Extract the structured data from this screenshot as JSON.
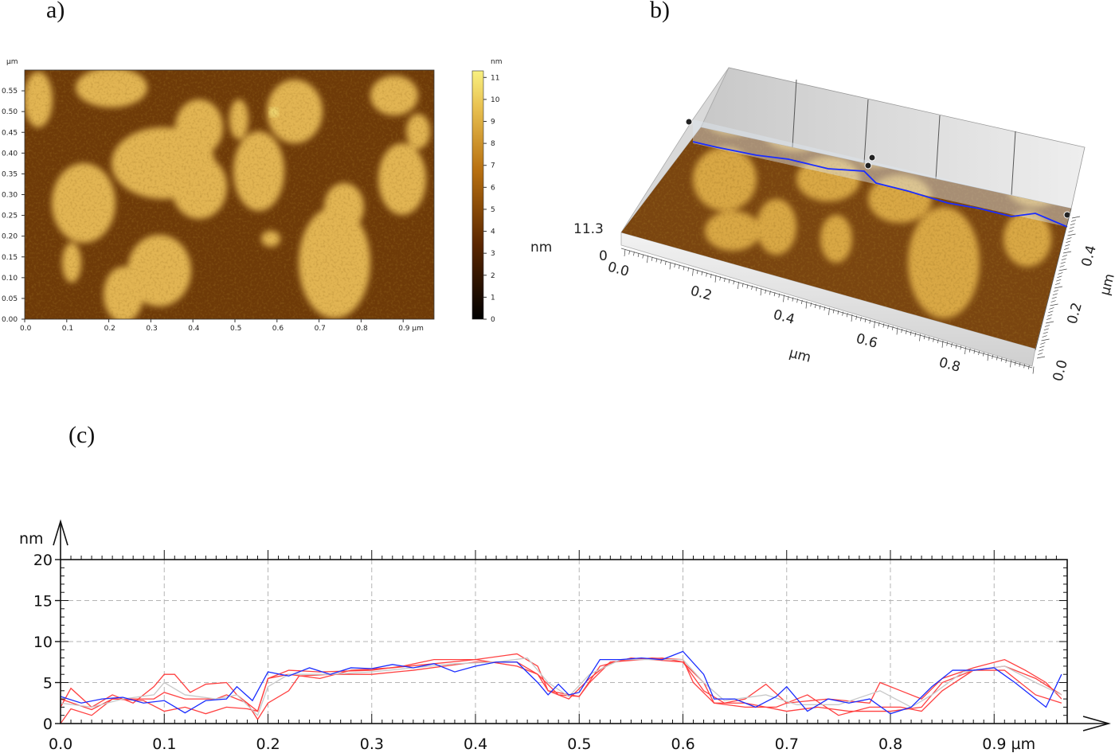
{
  "labels": {
    "a": "a)",
    "b": "b)",
    "c": "(c)"
  },
  "panel_a": {
    "y_unit": "µm",
    "colorbar_unit": "nm",
    "y_ticks": [
      "0.00",
      "0.05",
      "0.10",
      "0.15",
      "0.20",
      "0.25",
      "0.30",
      "0.35",
      "0.40",
      "0.45",
      "0.50",
      "0.55"
    ],
    "x_ticks": [
      "0.0",
      "0.1",
      "0.2",
      "0.3",
      "0.4",
      "0.5",
      "0.6",
      "0.7",
      "0.8",
      "0.9 µm"
    ],
    "colorbar_ticks": [
      "0",
      "1",
      "2",
      "3",
      "4",
      "5",
      "6",
      "7",
      "8",
      "9",
      "10",
      "11"
    ],
    "colorbar_range": [
      0,
      11.3
    ],
    "colors": {
      "low": "#000000",
      "mid": "#8a4a08",
      "high": "#f8f080"
    }
  },
  "panel_b": {
    "z_max": "11.3",
    "z_min": "0",
    "z_unit": "nm",
    "x_ticks": [
      "0.0",
      "0.2",
      "0.4",
      "0.6",
      "0.8"
    ],
    "x_unit": "µm",
    "y_ticks": [
      "0.0",
      "0.2",
      "0.4"
    ],
    "y_unit": "µm",
    "profile_color": "#1a2cff"
  },
  "chart_data": {
    "type": "line",
    "xlabel": "µm",
    "ylabel": "nm",
    "x_ticks": [
      "0.0",
      "0.1",
      "0.2",
      "0.3",
      "0.4",
      "0.5",
      "0.6",
      "0.7",
      "0.8",
      "0.9 µm"
    ],
    "y_ticks": [
      "0",
      "5",
      "10",
      "15",
      "20"
    ],
    "xlim": [
      0,
      0.97
    ],
    "ylim": [
      0,
      20
    ],
    "grid": true,
    "series": [
      {
        "color": "#ff4040",
        "points": [
          [
            0,
            2
          ],
          [
            0.01,
            4.3
          ],
          [
            0.03,
            2
          ],
          [
            0.05,
            3.5
          ],
          [
            0.07,
            2.5
          ],
          [
            0.09,
            4.5
          ],
          [
            0.1,
            6
          ],
          [
            0.11,
            6
          ],
          [
            0.125,
            3.8
          ],
          [
            0.14,
            4.8
          ],
          [
            0.16,
            5
          ],
          [
            0.17,
            3.5
          ],
          [
            0.19,
            1.5
          ],
          [
            0.2,
            5.5
          ],
          [
            0.22,
            6.5
          ],
          [
            0.25,
            6.3
          ],
          [
            0.3,
            6.5
          ],
          [
            0.33,
            7
          ],
          [
            0.36,
            7.8
          ],
          [
            0.4,
            7.8
          ],
          [
            0.44,
            8.5
          ],
          [
            0.46,
            7
          ],
          [
            0.47,
            4
          ],
          [
            0.5,
            3.3
          ],
          [
            0.52,
            7
          ],
          [
            0.55,
            8
          ],
          [
            0.6,
            7.5
          ],
          [
            0.62,
            4
          ],
          [
            0.64,
            2.5
          ],
          [
            0.66,
            3
          ],
          [
            0.68,
            4.8
          ],
          [
            0.7,
            2.5
          ],
          [
            0.74,
            3
          ],
          [
            0.78,
            2.5
          ],
          [
            0.79,
            5
          ],
          [
            0.81,
            4
          ],
          [
            0.83,
            3
          ],
          [
            0.85,
            5.5
          ],
          [
            0.88,
            6.8
          ],
          [
            0.91,
            7.8
          ],
          [
            0.93,
            6.5
          ],
          [
            0.95,
            5
          ],
          [
            0.965,
            3
          ]
        ]
      },
      {
        "color": "#ff4040",
        "points": [
          [
            0,
            0
          ],
          [
            0.01,
            1.8
          ],
          [
            0.03,
            1
          ],
          [
            0.05,
            3
          ],
          [
            0.07,
            3
          ],
          [
            0.09,
            3
          ],
          [
            0.1,
            3.8
          ],
          [
            0.12,
            3
          ],
          [
            0.15,
            3
          ],
          [
            0.16,
            3.5
          ],
          [
            0.18,
            2.5
          ],
          [
            0.19,
            0.5
          ],
          [
            0.2,
            2.5
          ],
          [
            0.22,
            4
          ],
          [
            0.23,
            5.8
          ],
          [
            0.26,
            6
          ],
          [
            0.3,
            6
          ],
          [
            0.34,
            6.5
          ],
          [
            0.37,
            7
          ],
          [
            0.4,
            7.5
          ],
          [
            0.44,
            7.5
          ],
          [
            0.46,
            6
          ],
          [
            0.48,
            3.5
          ],
          [
            0.5,
            3.3
          ],
          [
            0.51,
            5
          ],
          [
            0.53,
            7.5
          ],
          [
            0.57,
            8
          ],
          [
            0.6,
            7.8
          ],
          [
            0.61,
            5
          ],
          [
            0.63,
            2.5
          ],
          [
            0.66,
            2.5
          ],
          [
            0.7,
            1.5
          ],
          [
            0.73,
            2
          ],
          [
            0.76,
            1.5
          ],
          [
            0.8,
            1.5
          ],
          [
            0.83,
            2
          ],
          [
            0.85,
            5
          ],
          [
            0.88,
            6.5
          ],
          [
            0.91,
            7
          ],
          [
            0.94,
            5.5
          ],
          [
            0.965,
            3.5
          ]
        ]
      },
      {
        "color": "#ff4040",
        "points": [
          [
            0,
            3
          ],
          [
            0.03,
            1.7
          ],
          [
            0.05,
            3
          ],
          [
            0.08,
            2.8
          ],
          [
            0.1,
            1.5
          ],
          [
            0.12,
            2
          ],
          [
            0.14,
            1.2
          ],
          [
            0.16,
            2
          ],
          [
            0.18,
            1.8
          ],
          [
            0.19,
            1.5
          ],
          [
            0.2,
            5.5
          ],
          [
            0.22,
            6
          ],
          [
            0.25,
            5.5
          ],
          [
            0.28,
            6.5
          ],
          [
            0.32,
            6.8
          ],
          [
            0.36,
            7.3
          ],
          [
            0.4,
            7.8
          ],
          [
            0.44,
            7
          ],
          [
            0.46,
            6
          ],
          [
            0.47,
            4
          ],
          [
            0.49,
            3
          ],
          [
            0.51,
            5.5
          ],
          [
            0.53,
            7.5
          ],
          [
            0.58,
            8
          ],
          [
            0.6,
            7.5
          ],
          [
            0.62,
            5
          ],
          [
            0.63,
            2.5
          ],
          [
            0.66,
            2
          ],
          [
            0.69,
            2
          ],
          [
            0.72,
            3.5
          ],
          [
            0.75,
            1
          ],
          [
            0.78,
            2
          ],
          [
            0.81,
            2
          ],
          [
            0.83,
            1.5
          ],
          [
            0.85,
            4
          ],
          [
            0.88,
            6.5
          ],
          [
            0.91,
            6.5
          ],
          [
            0.94,
            3.5
          ],
          [
            0.965,
            2.5
          ]
        ]
      },
      {
        "color": "#c8c8c8",
        "points": [
          [
            0,
            2.5
          ],
          [
            0.03,
            2
          ],
          [
            0.06,
            3
          ],
          [
            0.09,
            3.5
          ],
          [
            0.1,
            5
          ],
          [
            0.12,
            3.5
          ],
          [
            0.15,
            3
          ],
          [
            0.17,
            3.5
          ],
          [
            0.19,
            1
          ],
          [
            0.2,
            4.5
          ],
          [
            0.22,
            6
          ],
          [
            0.26,
            6
          ],
          [
            0.3,
            6.3
          ],
          [
            0.34,
            6.8
          ],
          [
            0.38,
            7.3
          ],
          [
            0.42,
            7.5
          ],
          [
            0.45,
            8
          ],
          [
            0.47,
            5
          ],
          [
            0.49,
            3.3
          ],
          [
            0.51,
            6
          ],
          [
            0.54,
            7.8
          ],
          [
            0.6,
            7.8
          ],
          [
            0.62,
            5
          ],
          [
            0.64,
            2.8
          ],
          [
            0.68,
            3.5
          ],
          [
            0.71,
            2.3
          ],
          [
            0.75,
            2.3
          ],
          [
            0.79,
            4
          ],
          [
            0.82,
            2
          ],
          [
            0.84,
            3.5
          ],
          [
            0.87,
            6.3
          ],
          [
            0.91,
            7
          ],
          [
            0.94,
            5
          ],
          [
            0.965,
            3.5
          ]
        ]
      },
      {
        "color": "#1a2cff",
        "points": [
          [
            0,
            3.3
          ],
          [
            0.02,
            2.5
          ],
          [
            0.04,
            3
          ],
          [
            0.06,
            3.2
          ],
          [
            0.08,
            2.5
          ],
          [
            0.1,
            2.8
          ],
          [
            0.12,
            1.3
          ],
          [
            0.14,
            2.8
          ],
          [
            0.16,
            3
          ],
          [
            0.17,
            4.5
          ],
          [
            0.185,
            2.8
          ],
          [
            0.2,
            6.3
          ],
          [
            0.22,
            5.8
          ],
          [
            0.24,
            6.8
          ],
          [
            0.26,
            6
          ],
          [
            0.28,
            6.8
          ],
          [
            0.3,
            6.7
          ],
          [
            0.32,
            7.2
          ],
          [
            0.34,
            6.8
          ],
          [
            0.36,
            7.3
          ],
          [
            0.38,
            6.3
          ],
          [
            0.4,
            7
          ],
          [
            0.42,
            7.5
          ],
          [
            0.44,
            7.5
          ],
          [
            0.46,
            5
          ],
          [
            0.47,
            3.5
          ],
          [
            0.48,
            4.8
          ],
          [
            0.49,
            3.5
          ],
          [
            0.5,
            3.8
          ],
          [
            0.52,
            7.8
          ],
          [
            0.54,
            7.8
          ],
          [
            0.56,
            8
          ],
          [
            0.58,
            7.8
          ],
          [
            0.6,
            8.8
          ],
          [
            0.62,
            6
          ],
          [
            0.63,
            3
          ],
          [
            0.65,
            3
          ],
          [
            0.67,
            2
          ],
          [
            0.69,
            3.3
          ],
          [
            0.7,
            4.5
          ],
          [
            0.72,
            1.5
          ],
          [
            0.74,
            3
          ],
          [
            0.76,
            2.5
          ],
          [
            0.78,
            3
          ],
          [
            0.8,
            1.2
          ],
          [
            0.82,
            2
          ],
          [
            0.84,
            4.5
          ],
          [
            0.86,
            6.5
          ],
          [
            0.88,
            6.5
          ],
          [
            0.9,
            6.8
          ],
          [
            0.92,
            5
          ],
          [
            0.94,
            3
          ],
          [
            0.95,
            2
          ],
          [
            0.965,
            6
          ]
        ]
      }
    ]
  }
}
